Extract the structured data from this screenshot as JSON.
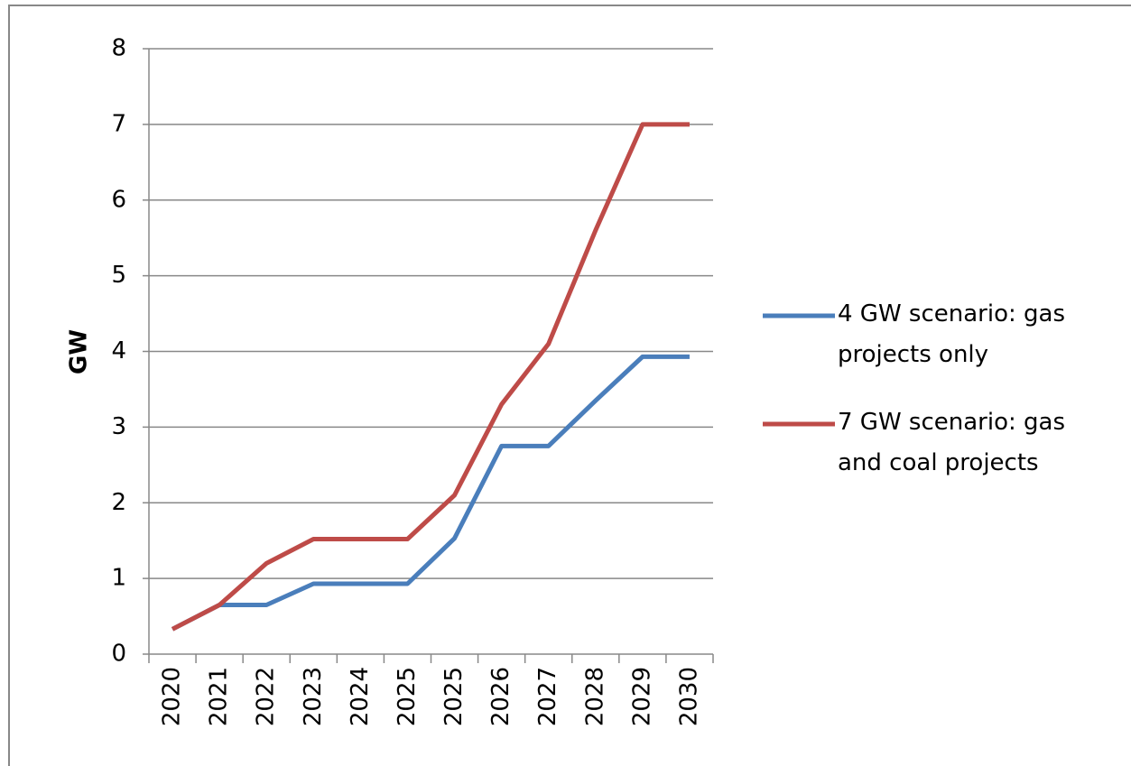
{
  "chart_data": {
    "type": "line",
    "y_label": "GW",
    "categories": [
      "2020",
      "2021",
      "2022",
      "2023",
      "2024",
      "2025",
      "2025",
      "2026",
      "2027",
      "2028",
      "2029",
      "2030"
    ],
    "series": [
      {
        "name": "4 GW scenario: gas projects only",
        "color": "#4a7ebb",
        "values": [
          0.33,
          0.65,
          0.65,
          0.93,
          0.93,
          0.93,
          1.53,
          2.75,
          2.75,
          3.35,
          3.93,
          3.93
        ]
      },
      {
        "name": "7 GW scenario: gas and coal projects",
        "color": "#be4b48",
        "values": [
          0.33,
          0.65,
          1.2,
          1.52,
          1.52,
          1.52,
          2.1,
          3.3,
          4.1,
          5.6,
          7.0,
          7.0
        ]
      }
    ],
    "ylim": [
      0,
      8
    ],
    "yticks": [
      0,
      1,
      2,
      3,
      4,
      5,
      6,
      7,
      8
    ],
    "grid": true,
    "legend": "right"
  }
}
